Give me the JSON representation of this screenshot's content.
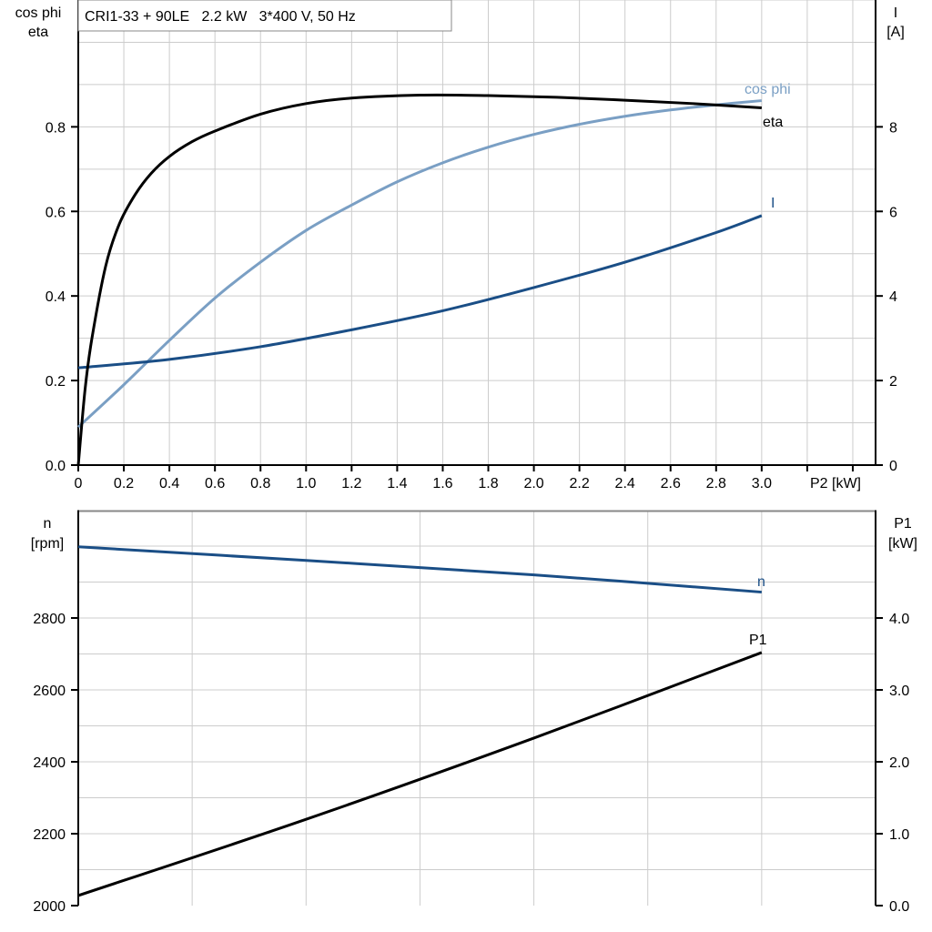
{
  "title": "CRI1-33 + 90LE   2.2 kW   3*400 V, 50 Hz",
  "colors": {
    "eta": "#000000",
    "cos_phi": "#7a9fc4",
    "current": "#1a4e86",
    "n": "#1a4e86",
    "P1": "#000000",
    "grid": "#cccccc"
  },
  "chart_data": [
    {
      "type": "line",
      "xlabel": "P2 [kW]",
      "ylabel_left": [
        "cos phi",
        "eta"
      ],
      "ylabel_right": [
        "I",
        "[A]"
      ],
      "xlim": [
        0,
        3.5
      ],
      "ylim_left": [
        0,
        1.1
      ],
      "ylim_right": [
        0,
        11
      ],
      "x_ticks": [
        "0",
        "0.2",
        "0.4",
        "0.6",
        "0.8",
        "1.0",
        "1.2",
        "1.4",
        "1.6",
        "1.8",
        "2.0",
        "2.2",
        "2.4",
        "2.6",
        "2.8",
        "3.0"
      ],
      "y_left_ticks": [
        "0.0",
        "0.2",
        "0.4",
        "0.6",
        "0.8"
      ],
      "y_right_ticks": [
        "0",
        "2",
        "4",
        "6",
        "8"
      ],
      "grid": true,
      "series": [
        {
          "name": "eta",
          "axis": "left",
          "x": [
            0,
            0.03,
            0.06,
            0.12,
            0.18,
            0.25,
            0.32,
            0.4,
            0.5,
            0.6,
            0.8,
            1.0,
            1.2,
            1.5,
            1.8,
            2.1,
            2.4,
            2.7,
            3.0
          ],
          "y": [
            0,
            0.18,
            0.3,
            0.47,
            0.57,
            0.64,
            0.69,
            0.73,
            0.765,
            0.79,
            0.83,
            0.855,
            0.868,
            0.875,
            0.874,
            0.87,
            0.863,
            0.855,
            0.845
          ]
        },
        {
          "name": "cos phi",
          "axis": "left",
          "x": [
            0,
            0.2,
            0.4,
            0.6,
            0.8,
            1.0,
            1.2,
            1.4,
            1.6,
            1.8,
            2.0,
            2.2,
            2.4,
            2.6,
            2.8,
            3.0
          ],
          "y": [
            0.09,
            0.19,
            0.295,
            0.395,
            0.48,
            0.555,
            0.615,
            0.67,
            0.715,
            0.752,
            0.782,
            0.806,
            0.825,
            0.84,
            0.852,
            0.862
          ]
        },
        {
          "name": "I",
          "axis": "right",
          "x": [
            0,
            0.4,
            0.8,
            1.2,
            1.6,
            2.0,
            2.4,
            2.8,
            3.0
          ],
          "y": [
            2.3,
            2.5,
            2.8,
            3.2,
            3.65,
            4.2,
            4.8,
            5.5,
            5.9
          ]
        }
      ]
    },
    {
      "type": "line",
      "xlim": [
        0,
        3.5
      ],
      "ylabel_left": [
        "n",
        "[rpm]"
      ],
      "ylabel_right": [
        "P1",
        "[kW]"
      ],
      "ylim_left": [
        2000,
        3100
      ],
      "ylim_right": [
        0,
        5.5
      ],
      "y_left_ticks": [
        "2000",
        "2200",
        "2400",
        "2600",
        "2800"
      ],
      "y_right_ticks": [
        "0.0",
        "1.0",
        "2.0",
        "3.0",
        "4.0"
      ],
      "grid": true,
      "series": [
        {
          "name": "n",
          "axis": "left",
          "x": [
            0,
            1.0,
            2.0,
            3.0
          ],
          "y": [
            2998,
            2960,
            2920,
            2872
          ]
        },
        {
          "name": "P1",
          "axis": "right",
          "x": [
            0,
            1.0,
            2.0,
            3.0
          ],
          "y": [
            0.14,
            1.2,
            2.33,
            3.52
          ]
        }
      ]
    }
  ]
}
